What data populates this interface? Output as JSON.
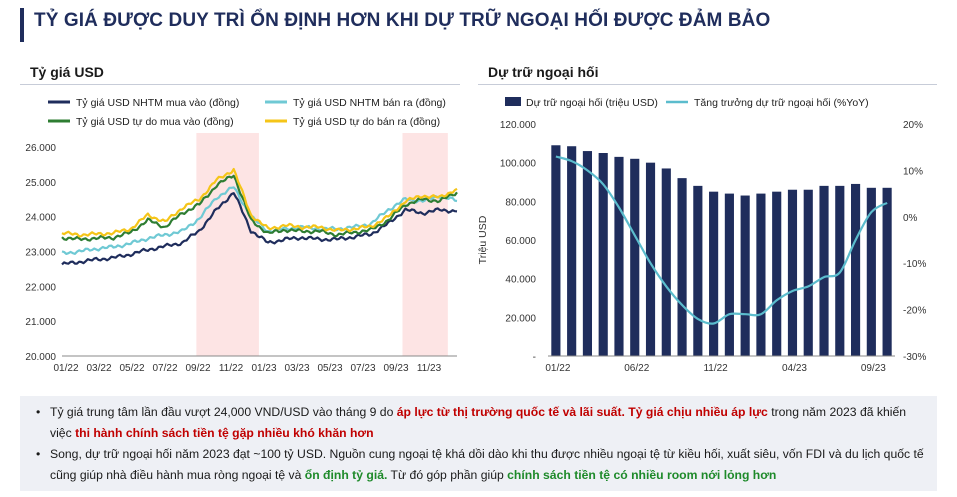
{
  "header": {
    "title": "TỶ GIÁ ĐƯỢC DUY TRÌ ỔN ĐỊNH HƠN KHI DỰ TRỮ NGOẠI HỐI ĐƯỢC ĐẢM BẢO"
  },
  "chart_data": [
    {
      "type": "line",
      "title": "Tỷ giá USD",
      "legend": [
        "Tỷ giá USD NHTM mua vào (đồng)",
        "Tỷ giá USD NHTM bán ra (đồng)",
        "Tỷ giá USD tự do mua vào (đồng)",
        "Tỷ giá USD tự do bán ra (đồng)"
      ],
      "x_tick_labels": [
        "01/22",
        "03/22",
        "05/22",
        "07/22",
        "09/22",
        "11/22",
        "01/23",
        "03/23",
        "05/23",
        "07/23",
        "09/23",
        "11/23"
      ],
      "y_tick_labels": [
        "20.000",
        "21.000",
        "22.000",
        "23.000",
        "24.000",
        "25.000",
        "26.000"
      ],
      "ylim": [
        20000,
        26000
      ],
      "x": [
        "01/22",
        "02/22",
        "03/22",
        "04/22",
        "05/22",
        "06/22",
        "07/22",
        "08/22",
        "09/22",
        "10/22",
        "11/22",
        "12/22",
        "01/23",
        "02/23",
        "03/23",
        "04/23",
        "05/23",
        "06/23",
        "07/23",
        "08/23",
        "09/23",
        "10/23",
        "11/23",
        "12/23"
      ],
      "series": [
        {
          "name": "Tỷ giá USD NHTM mua vào (đồng)",
          "color": "#1f2d5c",
          "values": [
            22630,
            22700,
            22770,
            22820,
            22920,
            23050,
            23150,
            23250,
            23600,
            24200,
            24700,
            23600,
            23250,
            23350,
            23400,
            23350,
            23350,
            23420,
            23500,
            23800,
            24200,
            24100,
            24200,
            24150
          ]
        },
        {
          "name": "Tỷ giá USD NHTM bán ra (đồng)",
          "color": "#6fc9d4",
          "values": [
            22950,
            23000,
            23080,
            23130,
            23230,
            23380,
            23480,
            23580,
            23950,
            24550,
            24850,
            24000,
            23580,
            23650,
            23700,
            23650,
            23650,
            23700,
            23800,
            24200,
            24500,
            24450,
            24600,
            24450
          ]
        },
        {
          "name": "Tỷ giá USD tự do mua vào (đồng)",
          "color": "#2e7d32",
          "values": [
            23400,
            23350,
            23380,
            23400,
            23550,
            23900,
            23700,
            24100,
            24350,
            24900,
            25200,
            23900,
            23520,
            23620,
            23580,
            23580,
            23480,
            23550,
            23620,
            23900,
            24350,
            24500,
            24450,
            24700
          ]
        },
        {
          "name": "Tỷ giá USD tự do bán ra (đồng)",
          "color": "#f5c518",
          "values": [
            23530,
            23480,
            23500,
            23530,
            23650,
            24050,
            23850,
            24250,
            24500,
            25050,
            25350,
            24050,
            23650,
            23750,
            23700,
            23700,
            23600,
            23650,
            23720,
            24000,
            24450,
            24600,
            24550,
            24800
          ]
        }
      ],
      "shaded_periods": [
        [
          "09/22",
          "12/22"
        ],
        [
          "09/23",
          "11/23"
        ]
      ]
    },
    {
      "type": "bar",
      "title": "Dự trữ ngoại hối",
      "legend": [
        "Dự trữ ngoại hối (triệu USD)",
        "Tăng trưởng dự trữ ngoại hối (%YoY)"
      ],
      "ylabel": "Triệu USD",
      "ylim": [
        0,
        120000
      ],
      "y2lim": [
        -30,
        20
      ],
      "y_tick_labels": [
        "-",
        "20.000",
        "40.000",
        "60.000",
        "80.000",
        "100.000",
        "120.000"
      ],
      "y2_tick_labels": [
        "-30%",
        "-20%",
        "-10%",
        "0%",
        "10%",
        "20%"
      ],
      "x_tick_labels": [
        "01/22",
        "06/22",
        "11/22",
        "04/23",
        "09/23"
      ],
      "categories": [
        "01/22",
        "02/22",
        "03/22",
        "04/22",
        "05/22",
        "06/22",
        "07/22",
        "08/22",
        "09/22",
        "10/22",
        "11/22",
        "12/22",
        "01/23",
        "02/23",
        "03/23",
        "04/23",
        "05/23",
        "06/23",
        "07/23",
        "08/23",
        "09/23",
        "10/23"
      ],
      "bar_color": "#1f2d5c",
      "line_color": "#5bbccd",
      "series": [
        {
          "name": "Dự trữ ngoại hối (triệu USD)",
          "values": [
            109000,
            108500,
            106000,
            105000,
            103000,
            102000,
            100000,
            97000,
            92000,
            88000,
            85000,
            84000,
            83000,
            84000,
            85000,
            86000,
            86000,
            88000,
            88000,
            89000,
            87000,
            87000
          ]
        },
        {
          "name": "Tăng trưởng dự trữ ngoại hối (%YoY)",
          "values": [
            13,
            12,
            10,
            7,
            2,
            -4,
            -10,
            -15,
            -19,
            -22,
            -23,
            -21,
            -21,
            -21,
            -18,
            -16,
            -15,
            -13,
            -12,
            -5,
            1,
            3
          ]
        }
      ]
    }
  ],
  "bullets": [
    {
      "parts": [
        {
          "text": "Tỷ giá trung tâm lần đầu vượt 24,000 VND/USD vào tháng 9 do ",
          "style": "n"
        },
        {
          "text": "áp lực từ thị trường quốc tế và lãi suất. Tỷ giá chịu nhiều áp lực",
          "style": "r"
        },
        {
          "text": " trong năm 2023 đã khiến việc ",
          "style": "n"
        },
        {
          "text": "thi hành chính sách tiền tệ gặp nhiều khó khăn hơn",
          "style": "r"
        }
      ]
    },
    {
      "parts": [
        {
          "text": "Song, dự trữ ngoại hối năm 2023 đạt ~100 tỷ USD. Nguồn cung ngoại tệ khá dồi dào khi thu được nhiều ngoại tệ từ kiều hối, xuất siêu, vốn FDI và du lịch quốc tế cũng giúp nhà điều hành mua ròng ngoại tệ và ",
          "style": "n"
        },
        {
          "text": "ổn định tỷ giá.",
          "style": "g"
        },
        {
          "text": " Từ đó góp phần giúp ",
          "style": "n"
        },
        {
          "text": "chính sách tiền tệ có nhiều room nới lỏng hơn",
          "style": "g"
        }
      ]
    }
  ]
}
